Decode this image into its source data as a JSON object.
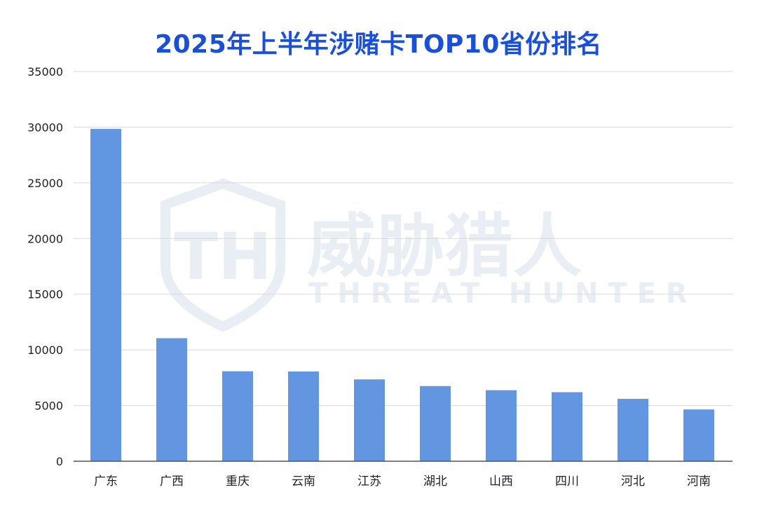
{
  "chart_data": {
    "type": "bar",
    "title": "2025年上半年涉赌卡TOP10省份排名",
    "categories": [
      "广东",
      "广西",
      "重庆",
      "云南",
      "江苏",
      "湖北",
      "山西",
      "四川",
      "河北",
      "河南"
    ],
    "values": [
      29850,
      11050,
      8080,
      8060,
      7350,
      6750,
      6380,
      6200,
      5600,
      4650
    ],
    "ylim": [
      0,
      35000
    ],
    "yticks": [
      0,
      5000,
      10000,
      15000,
      20000,
      25000,
      30000,
      35000
    ],
    "xlabel": "",
    "ylabel": "",
    "grid": true,
    "bar_color": "#6296e0"
  },
  "watermark": {
    "name": "威胁猎人",
    "subtitle": "THREAT HUNTER",
    "logo_letters": "TH",
    "color": "#e9edf4"
  },
  "colors": {
    "title": "#1a4fd8",
    "grid": "#d9d9d9",
    "axis": "#555555"
  }
}
